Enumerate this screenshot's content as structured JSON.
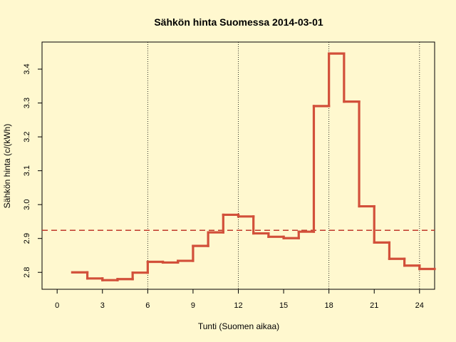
{
  "chart_data": {
    "type": "line",
    "step": true,
    "title": "Sähkön hinta Suomessa 2014-03-01",
    "xlabel": "Tunti (Suomen aikaa)",
    "ylabel": "Sähkön hinta (c/(kWh)",
    "xlim": [
      -1,
      25
    ],
    "ylim": [
      2.75,
      3.48
    ],
    "x_ticks": [
      0,
      3,
      6,
      9,
      12,
      15,
      18,
      21,
      24
    ],
    "x_tick_labels": [
      "0",
      "3",
      "6",
      "9",
      "12",
      "15",
      "18",
      "21",
      "24"
    ],
    "y_ticks": [
      2.8,
      2.9,
      3.0,
      3.1,
      3.2,
      3.3,
      3.4
    ],
    "y_tick_labels": [
      "2.8",
      "2.9",
      "3.0",
      "3.1",
      "3.2",
      "3.3",
      "3.4"
    ],
    "vertical_reference_lines": [
      6,
      12,
      18,
      24
    ],
    "mean_line": 2.924,
    "series": [
      {
        "x": [
          1,
          2,
          3,
          4,
          5,
          6,
          7,
          8,
          9,
          10,
          11,
          12,
          13,
          14,
          15,
          16,
          17,
          18,
          19,
          20,
          21,
          22,
          23,
          24
        ],
        "values": [
          2.8,
          2.782,
          2.777,
          2.78,
          2.799,
          2.831,
          2.829,
          2.834,
          2.878,
          2.918,
          2.97,
          2.965,
          2.915,
          2.905,
          2.901,
          2.92,
          3.291,
          3.446,
          3.304,
          2.995,
          2.888,
          2.84,
          2.82,
          2.81
        ]
      }
    ],
    "colors": {
      "line": "#d2503a",
      "mean_line": "#c0392b",
      "background": "#fff8cf"
    }
  }
}
